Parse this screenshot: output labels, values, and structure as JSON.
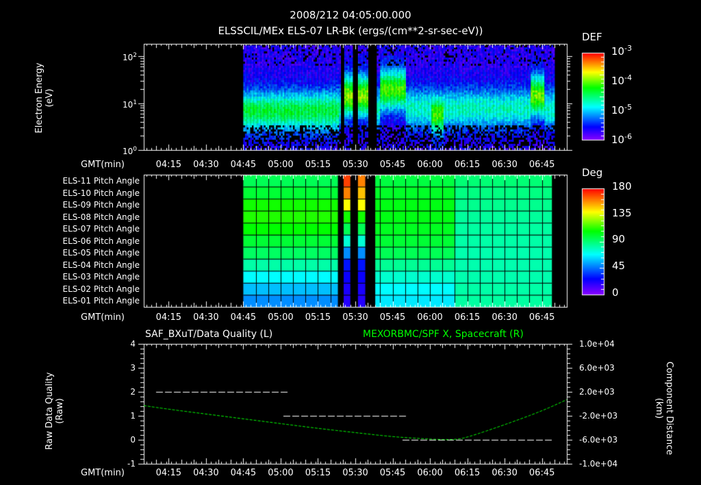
{
  "header": {
    "line1": "2008/212 04:05:00.000",
    "line2": "ELSSCIL/MEx ELS-07 LR-Bk  (ergs/(cm**2-sr-sec-eV))"
  },
  "time_axis": {
    "label": "GMT(min)",
    "start_min": 245,
    "end_min": 415,
    "ticks": [
      "04:15",
      "04:30",
      "04:45",
      "05:00",
      "05:15",
      "05:30",
      "05:45",
      "06:00",
      "06:15",
      "06:30",
      "06:45"
    ],
    "tick_minutes": [
      255,
      270,
      285,
      300,
      315,
      330,
      345,
      360,
      375,
      390,
      405
    ]
  },
  "panel1": {
    "ylabel_line1": "Electron Energy",
    "ylabel_line2": "(eV)",
    "yticks": [
      {
        "base": "10",
        "exp": "0"
      },
      {
        "base": "10",
        "exp": "1"
      },
      {
        "base": "10",
        "exp": "2"
      }
    ],
    "colorbar_title": "DEF",
    "colorbar_ticks": [
      {
        "base": "10",
        "exp": "-3"
      },
      {
        "base": "10",
        "exp": "-4"
      },
      {
        "base": "10",
        "exp": "-5"
      },
      {
        "base": "10",
        "exp": "-6"
      }
    ]
  },
  "panel2": {
    "row_labels": [
      "ELS-11 Pitch Angle",
      "ELS-10 Pitch Angle",
      "ELS-09 Pitch Angle",
      "ELS-08 Pitch Angle",
      "ELS-07 Pitch Angle",
      "ELS-06 Pitch Angle",
      "ELS-05 Pitch Angle",
      "ELS-04 Pitch Angle",
      "ELS-03 Pitch Angle",
      "ELS-02 Pitch Angle",
      "ELS-01 Pitch Angle"
    ],
    "colorbar_title": "Deg",
    "colorbar_ticks": [
      "180",
      "135",
      "90",
      "45",
      "0"
    ]
  },
  "panel3": {
    "title_left": "SAF_BXuT/Data Quality (L)",
    "title_right": "MEXORBMC/SPF X, Spacecraft (R)",
    "title_right_color": "#00ff00",
    "ylabel_left_line1": "Raw Data Quality",
    "ylabel_left_line2": "(Raw)",
    "ylabel_right_line1": "Component Distance",
    "ylabel_right_line2": "(km)",
    "left_ticks": [
      "4",
      "3",
      "2",
      "1",
      "0",
      "-1"
    ],
    "right_ticks": [
      "1.0e+04",
      "6.0e+03",
      "2.0e+03",
      "-2.0e+03",
      "-6.0e+03",
      "-1.0e+04"
    ]
  },
  "chart_data": [
    {
      "type": "heatmap",
      "title": "ELSSCIL/MEx ELS-07 LR-Bk (ergs/(cm**2-sr-sec-eV))",
      "xlabel": "GMT(min)",
      "ylabel": "Electron Energy (eV)",
      "yscale": "log",
      "ylim": [
        1,
        220
      ],
      "x_range": [
        "04:05",
        "06:55"
      ],
      "data_start": "04:45",
      "data_end": "06:50",
      "gaps": [
        [
          "05:24",
          "05:25"
        ],
        [
          "05:29",
          "05:31"
        ],
        [
          "05:35",
          "05:38"
        ]
      ],
      "colorbar": {
        "label": "DEF",
        "scale": "log",
        "range": [
          1e-06,
          0.001
        ]
      },
      "features": [
        {
          "time_range": [
            "04:45",
            "05:23"
          ],
          "peak_energy_eV": 7,
          "peak_DEF": 2e-05
        },
        {
          "time_range": [
            "05:25",
            "05:37"
          ],
          "peak_energy_eV": 15,
          "peak_DEF": 6e-05
        },
        {
          "time_range": [
            "05:40",
            "05:50"
          ],
          "peak_energy_eV": 20,
          "peak_DEF": 4e-05
        },
        {
          "time_range": [
            "06:00",
            "06:05"
          ],
          "peak_energy_eV": 6,
          "peak_DEF": 4e-05
        },
        {
          "time_range": [
            "06:40",
            "06:46"
          ],
          "peak_energy_eV": 15,
          "peak_DEF": 5e-05
        }
      ]
    },
    {
      "type": "heatmap",
      "title": "Pitch Angle",
      "xlabel": "GMT(min)",
      "rows": [
        "ELS-11",
        "ELS-10",
        "ELS-09",
        "ELS-08",
        "ELS-07",
        "ELS-06",
        "ELS-05",
        "ELS-04",
        "ELS-03",
        "ELS-02",
        "ELS-01"
      ],
      "colorbar": {
        "label": "Deg",
        "range": [
          0,
          180
        ],
        "ticks": [
          0,
          45,
          90,
          135,
          180
        ]
      },
      "segments": [
        {
          "time_range": [
            "04:45",
            "05:23"
          ],
          "values_deg": [
            95,
            100,
            110,
            112,
            108,
            100,
            93,
            82,
            68,
            58,
            50
          ]
        },
        {
          "time_range": [
            "05:25",
            "05:28"
          ],
          "values_deg": [
            170,
            160,
            140,
            110,
            95,
            75,
            50,
            30,
            25,
            22,
            20
          ]
        },
        {
          "time_range": [
            "05:31",
            "05:34"
          ],
          "values_deg": [
            160,
            150,
            140,
            110,
            95,
            75,
            50,
            30,
            25,
            22,
            20
          ]
        },
        {
          "time_range": [
            "05:38",
            "06:10"
          ],
          "values_deg": [
            98,
            102,
            105,
            105,
            103,
            100,
            95,
            85,
            76,
            68,
            65
          ]
        },
        {
          "time_range": [
            "06:10",
            "06:49"
          ],
          "values_deg": [
            90,
            88,
            86,
            84,
            83,
            82,
            81,
            81,
            81,
            82,
            83
          ]
        }
      ]
    },
    {
      "type": "line",
      "title": "SAF_BXuT/Data Quality (L) / MEXORBMC/SPF X, Spacecraft (R)",
      "xlabel": "GMT(min)",
      "series": [
        {
          "name": "Data Quality (L)",
          "axis": "left",
          "color": "#ffffff",
          "style": "dashed-steps",
          "ylim": [
            -1,
            4
          ],
          "steps": [
            {
              "from": "04:10",
              "to": "05:01",
              "value": 2
            },
            {
              "from": "05:01",
              "to": "05:49",
              "value": 1
            },
            {
              "from": "05:49",
              "to": "06:47",
              "value": 0
            }
          ]
        },
        {
          "name": "SPF X, Spacecraft (R)",
          "axis": "right",
          "color": "#00ff00",
          "ylim": [
            -10000,
            10000
          ],
          "x": [
            "04:05",
            "04:15",
            "04:30",
            "04:45",
            "05:00",
            "05:15",
            "05:30",
            "05:45",
            "06:00",
            "06:10",
            "06:15",
            "06:30",
            "06:45",
            "06:55"
          ],
          "values": [
            -300,
            -900,
            -1700,
            -2500,
            -3300,
            -4100,
            -4800,
            -5500,
            -5900,
            -6000,
            -5600,
            -3500,
            -1200,
            700
          ]
        }
      ],
      "left_ticks": [
        -1,
        0,
        1,
        2,
        3,
        4
      ],
      "right_ticks": [
        -10000,
        -6000,
        -2000,
        2000,
        6000,
        10000
      ]
    }
  ]
}
